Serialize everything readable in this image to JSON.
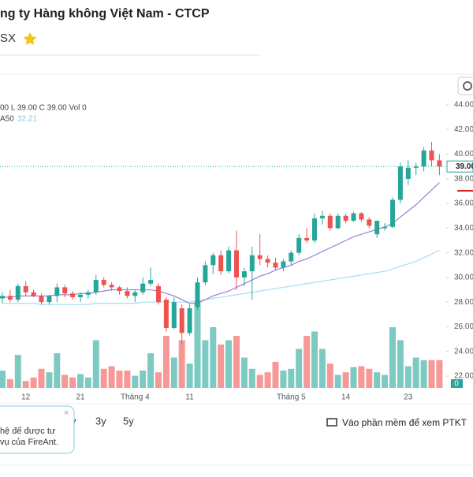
{
  "header": {
    "title": "ng ty Hàng không Việt Nam - CTCP",
    "exchange": "SX"
  },
  "chart_data": {
    "type": "candlestick",
    "ohlc_text": "00 L 39.00 C 39.00 Vol 0",
    "ma_label": "A50",
    "ma_value_label": "32.21",
    "categories": [
      null,
      null,
      null,
      "12",
      null,
      null,
      null,
      null,
      null,
      null,
      "21",
      null,
      null,
      null,
      null,
      null,
      null,
      "Tháng 4",
      null,
      null,
      null,
      null,
      null,
      null,
      "11",
      null,
      null,
      null,
      null,
      null,
      null,
      null,
      null,
      null,
      null,
      null,
      null,
      "Tháng 5",
      null,
      null,
      null,
      null,
      null,
      null,
      "14",
      null,
      null,
      null,
      null,
      null,
      null,
      null,
      "23",
      null,
      null,
      null,
      null
    ],
    "open": [
      28.3,
      28.5,
      28.2,
      29.3,
      28.8,
      28.5,
      28.0,
      28.5,
      29.2,
      28.7,
      28.4,
      28.6,
      28.8,
      29.8,
      29.4,
      29.2,
      28.9,
      28.5,
      28.8,
      29.5,
      29.3,
      28.2,
      25.9,
      27.5,
      25.5,
      27.6,
      29.6,
      31.0,
      31.8,
      30.5,
      32.2,
      30.0,
      30.5,
      31.8,
      31.5,
      31.2,
      30.8,
      31.3,
      32.0,
      33.2,
      33.0,
      34.8,
      35.0,
      34.0,
      35.0,
      34.6,
      35.2,
      34.7,
      33.5,
      34.0,
      34.1,
      36.3,
      38.0,
      38.9,
      39.0,
      40.3,
      39.5
    ],
    "high": [
      28.8,
      29.0,
      29.5,
      29.7,
      29.0,
      28.7,
      28.6,
      29.5,
      29.4,
      28.9,
      28.8,
      29.0,
      30.2,
      30.0,
      29.6,
      29.3,
      29.2,
      29.0,
      30.0,
      30.8,
      29.5,
      28.4,
      28.4,
      27.8,
      27.8,
      30.0,
      31.3,
      32.0,
      32.2,
      32.5,
      33.8,
      30.8,
      32.5,
      33.5,
      31.8,
      31.6,
      31.5,
      32.2,
      33.5,
      34.0,
      35.2,
      35.4,
      35.2,
      35.2,
      35.2,
      35.3,
      35.3,
      34.9,
      34.6,
      34.4,
      36.5,
      39.3,
      39.5,
      39.3,
      40.6,
      41.0,
      40.0
    ],
    "low": [
      27.9,
      28.0,
      28.0,
      28.5,
      28.4,
      27.8,
      27.8,
      28.0,
      28.4,
      28.2,
      28.0,
      28.3,
      28.6,
      29.2,
      28.9,
      28.6,
      28.3,
      28.0,
      28.6,
      29.3,
      27.8,
      25.6,
      25.8,
      24.6,
      25.3,
      27.4,
      29.4,
      30.3,
      30.2,
      30.3,
      29.0,
      29.3,
      28.2,
      31.0,
      30.8,
      30.6,
      30.5,
      31.0,
      31.8,
      32.8,
      32.8,
      34.3,
      33.8,
      33.9,
      34.4,
      34.5,
      34.5,
      34.0,
      33.2,
      33.8,
      34.0,
      36.0,
      37.5,
      38.3,
      38.6,
      39.0,
      38.3
    ],
    "close": [
      28.5,
      28.2,
      29.3,
      28.8,
      28.5,
      28.0,
      28.5,
      29.2,
      28.7,
      28.4,
      28.6,
      28.8,
      29.8,
      29.4,
      29.2,
      28.9,
      28.5,
      28.8,
      29.5,
      29.8,
      28.0,
      25.9,
      28.0,
      25.5,
      27.5,
      29.6,
      31.0,
      31.8,
      30.5,
      32.2,
      30.0,
      30.5,
      31.8,
      31.5,
      31.2,
      30.8,
      31.3,
      32.0,
      33.2,
      33.0,
      34.8,
      35.0,
      34.0,
      35.0,
      34.6,
      35.2,
      34.7,
      34.2,
      34.6,
      34.1,
      36.3,
      39.0,
      38.9,
      39.0,
      40.3,
      39.5,
      39.0
    ],
    "volume": [
      20,
      10,
      38,
      8,
      12,
      22,
      18,
      40,
      15,
      12,
      16,
      12,
      55,
      22,
      25,
      20,
      20,
      14,
      20,
      40,
      18,
      60,
      35,
      55,
      28,
      100,
      55,
      70,
      50,
      55,
      60,
      35,
      22,
      15,
      18,
      30,
      20,
      22,
      45,
      60,
      65,
      45,
      28,
      15,
      18,
      24,
      25,
      22,
      18,
      15,
      70,
      55,
      25,
      35,
      32,
      32,
      32
    ],
    "ma20": {
      "color": "#9b7fd4",
      "values": [
        28.4,
        28.4,
        28.5,
        28.5,
        28.5,
        28.5,
        28.5,
        28.6,
        28.6,
        28.6,
        28.7,
        28.7,
        28.8,
        28.9,
        29.0,
        29.0,
        29.0,
        29.0,
        29.0,
        29.0,
        28.9,
        28.7,
        28.5,
        28.2,
        27.9,
        27.9,
        28.2,
        28.5,
        28.7,
        28.9,
        29.2,
        29.5,
        29.8,
        30.1,
        30.3,
        30.6,
        30.8,
        31.0,
        31.3,
        31.5,
        31.8,
        32.1,
        32.4,
        32.7,
        33.0,
        33.3,
        33.5,
        33.7,
        33.9,
        34.1,
        34.4,
        34.9,
        35.4,
        35.9,
        36.5,
        37.1,
        37.7
      ]
    },
    "ma50": {
      "color": "#a8dcf2",
      "values": [
        27.9,
        27.9,
        27.9,
        27.9,
        27.9,
        27.8,
        27.8,
        27.8,
        27.8,
        27.8,
        27.8,
        27.8,
        27.9,
        27.9,
        27.9,
        27.9,
        27.9,
        27.9,
        28.0,
        28.0,
        28.0,
        28.0,
        28.0,
        28.0,
        28.0,
        28.1,
        28.2,
        28.3,
        28.4,
        28.5,
        28.6,
        28.7,
        28.8,
        28.9,
        29.0,
        29.1,
        29.2,
        29.3,
        29.4,
        29.5,
        29.6,
        29.7,
        29.8,
        29.9,
        30.0,
        30.1,
        30.2,
        30.3,
        30.4,
        30.5,
        30.7,
        30.9,
        31.1,
        31.3,
        31.6,
        31.9,
        32.21
      ]
    },
    "up_color": "#26a69a",
    "down_color": "#ef5350",
    "ylim": [
      22,
      44
    ],
    "yticks": [
      {
        "value": 44,
        "label": "44.00"
      },
      {
        "value": 42,
        "label": "42.00"
      },
      {
        "value": 40,
        "label": "40.00"
      },
      {
        "value": 38,
        "label": "38.00"
      },
      {
        "value": 36,
        "label": "36.00"
      },
      {
        "value": 34,
        "label": "34.00"
      },
      {
        "value": 32,
        "label": "32.00"
      },
      {
        "value": 30,
        "label": "30.00"
      },
      {
        "value": 28,
        "label": "28.00"
      },
      {
        "value": 26,
        "label": "26.00"
      },
      {
        "value": 24,
        "label": "24.00"
      },
      {
        "value": 22,
        "label": "22.00"
      }
    ],
    "volume_lim": [
      0,
      100
    ],
    "volume_ticks": [
      0
    ],
    "last_price": {
      "value": 39,
      "label": "39.00"
    }
  },
  "footer": {
    "ranges": [
      "y",
      "3y",
      "5y"
    ],
    "popup": [
      "hệ để được tư",
      "vụ của FireAnt."
    ],
    "cta": "Vào phần mềm để xem PTKT"
  }
}
